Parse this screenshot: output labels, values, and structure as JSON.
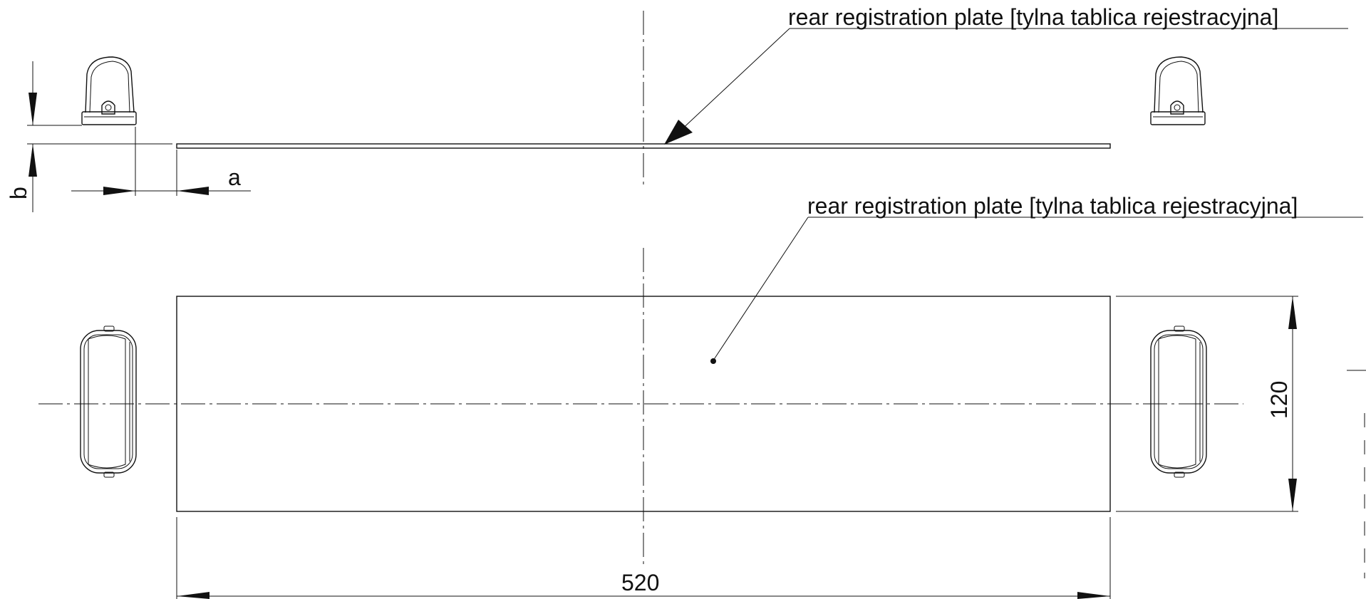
{
  "labels": {
    "plate_side_view": "rear registration plate [tylna tablica rejestracyjna]",
    "plate_top_view": "rear registration plate [tylna tablica rejestracyjna]"
  },
  "dimensions": {
    "a": "a",
    "b": "b",
    "width": "520",
    "height": "120"
  }
}
